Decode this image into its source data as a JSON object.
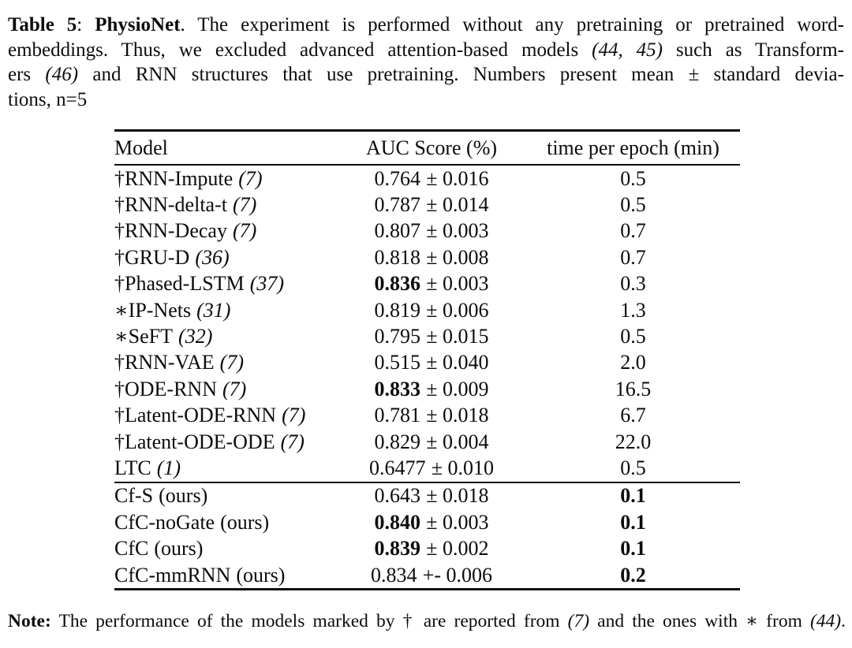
{
  "page": {
    "background_color": "#ffffff",
    "text_color": "#0c0c0c"
  },
  "caption": {
    "lines": [
      {
        "last": false,
        "segments": [
          {
            "text": "Table 5",
            "bold": true
          },
          {
            "text": ": "
          },
          {
            "text": "PhysioNet",
            "bold": true
          },
          {
            "text": ". The experiment is performed without any pretraining or pretrained word-"
          }
        ]
      },
      {
        "last": false,
        "segments": [
          {
            "text": "embeddings. Thus, we excluded advanced attention-based models "
          },
          {
            "text": "(44, 45)",
            "italic": true
          },
          {
            "text": " such as Transform-"
          }
        ]
      },
      {
        "last": false,
        "segments": [
          {
            "text": "ers "
          },
          {
            "text": "(46)",
            "italic": true
          },
          {
            "text": " and RNN structures that use pretraining. Numbers present mean ± standard devia-"
          }
        ]
      },
      {
        "last": true,
        "segments": [
          {
            "text": "tions, n=5"
          }
        ]
      }
    ]
  },
  "table": {
    "headers": [
      "Model",
      "AUC Score (%)",
      "time per epoch (min)"
    ],
    "rows": [
      {
        "model": "†RNN-Impute",
        "cite": "(7)",
        "cite_italic": true,
        "auc": "0.764",
        "auc_bold": false,
        "pm": "± 0.016",
        "time": "0.5",
        "time_bold": false,
        "sep": false
      },
      {
        "model": "†RNN-delta-t",
        "cite": "(7)",
        "cite_italic": true,
        "auc": "0.787",
        "auc_bold": false,
        "pm": "± 0.014",
        "time": "0.5",
        "time_bold": false,
        "sep": false
      },
      {
        "model": "†RNN-Decay",
        "cite": "(7)",
        "cite_italic": true,
        "auc": "0.807",
        "auc_bold": false,
        "pm": "± 0.003",
        "time": "0.7",
        "time_bold": false,
        "sep": false
      },
      {
        "model": "†GRU-D",
        "cite": "(36)",
        "cite_italic": true,
        "auc": "0.818",
        "auc_bold": false,
        "pm": "± 0.008",
        "time": "0.7",
        "time_bold": false,
        "sep": false
      },
      {
        "model": "†Phased-LSTM",
        "cite": "(37)",
        "cite_italic": true,
        "auc": "0.836",
        "auc_bold": true,
        "pm": "± 0.003",
        "time": "0.3",
        "time_bold": false,
        "sep": false
      },
      {
        "model": "∗IP-Nets",
        "cite": "(31)",
        "cite_italic": true,
        "auc": "0.819",
        "auc_bold": false,
        "pm": "± 0.006",
        "time": "1.3",
        "time_bold": false,
        "sep": false
      },
      {
        "model": "∗SeFT",
        "cite": "(32)",
        "cite_italic": true,
        "auc": "0.795",
        "auc_bold": false,
        "pm": "± 0.015",
        "time": "0.5",
        "time_bold": false,
        "sep": false
      },
      {
        "model": "†RNN-VAE",
        "cite": "(7)",
        "cite_italic": true,
        "auc": "0.515",
        "auc_bold": false,
        "pm": "± 0.040",
        "time": "2.0",
        "time_bold": false,
        "sep": false
      },
      {
        "model": "†ODE-RNN",
        "cite": "(7)",
        "cite_italic": true,
        "auc": "0.833",
        "auc_bold": true,
        "pm": "± 0.009",
        "time": "16.5",
        "time_bold": false,
        "sep": false
      },
      {
        "model": "†Latent-ODE-RNN",
        "cite": "(7)",
        "cite_italic": true,
        "auc": "0.781",
        "auc_bold": false,
        "pm": "± 0.018",
        "time": "6.7",
        "time_bold": false,
        "sep": false
      },
      {
        "model": "†Latent-ODE-ODE",
        "cite": "(7)",
        "cite_italic": true,
        "auc": "0.829",
        "auc_bold": false,
        "pm": "± 0.004",
        "time": "22.0",
        "time_bold": false,
        "sep": false
      },
      {
        "model": "LTC",
        "cite": "(1)",
        "cite_italic": true,
        "auc": "0.6477",
        "auc_bold": false,
        "pm": "± 0.010",
        "time": "0.5",
        "time_bold": false,
        "sep": false
      },
      {
        "model": "Cf-S",
        "cite": "(ours)",
        "cite_italic": false,
        "auc": "0.643",
        "auc_bold": false,
        "pm": "± 0.018",
        "time": "0.1",
        "time_bold": true,
        "sep": true
      },
      {
        "model": "CfC-noGate",
        "cite": "(ours)",
        "cite_italic": false,
        "auc": "0.840",
        "auc_bold": true,
        "pm": "± 0.003",
        "time": "0.1",
        "time_bold": true,
        "sep": false
      },
      {
        "model": "CfC",
        "cite": "(ours)",
        "cite_italic": false,
        "auc": "0.839",
        "auc_bold": true,
        "pm": "± 0.002",
        "time": "0.1",
        "time_bold": true,
        "sep": false
      },
      {
        "model": "CfC-mmRNN",
        "cite": "(ours)",
        "cite_italic": false,
        "auc": "0.834",
        "auc_bold": false,
        "pm": "+- 0.006",
        "time": "0.2",
        "time_bold": true,
        "sep": false
      }
    ]
  },
  "note": {
    "segments": [
      {
        "text": "Note:",
        "bold": true
      },
      {
        "text": " The performance of the models marked by † are reported from "
      },
      {
        "text": "(7)",
        "italic": true
      },
      {
        "text": " and the ones with ∗ from "
      },
      {
        "text": "(44)",
        "italic": true
      },
      {
        "text": "."
      }
    ]
  }
}
